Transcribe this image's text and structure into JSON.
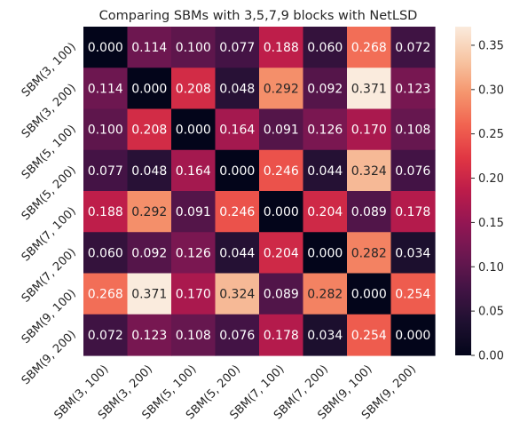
{
  "chart_data": {
    "type": "heatmap",
    "title": "Comparing SBMs with 3,5,7,9 blocks with NetLSD",
    "xlabel": "",
    "ylabel": "",
    "row_labels": [
      "SBM(3, 100)",
      "SBM(3, 200)",
      "SBM(5, 100)",
      "SBM(5, 200)",
      "SBM(7, 100)",
      "SBM(7, 200)",
      "SBM(9, 100)",
      "SBM(9, 200)"
    ],
    "col_labels": [
      "SBM(3, 100)",
      "SBM(3, 200)",
      "SBM(5, 100)",
      "SBM(5, 200)",
      "SBM(7, 100)",
      "SBM(7, 200)",
      "SBM(9, 100)",
      "SBM(9, 200)"
    ],
    "values": [
      [
        0.0,
        0.114,
        0.1,
        0.077,
        0.188,
        0.06,
        0.268,
        0.072
      ],
      [
        0.114,
        0.0,
        0.208,
        0.048,
        0.292,
        0.092,
        0.371,
        0.123
      ],
      [
        0.1,
        0.208,
        0.0,
        0.164,
        0.091,
        0.126,
        0.17,
        0.108
      ],
      [
        0.077,
        0.048,
        0.164,
        0.0,
        0.246,
        0.044,
        0.324,
        0.076
      ],
      [
        0.188,
        0.292,
        0.091,
        0.246,
        0.0,
        0.204,
        0.089,
        0.178
      ],
      [
        0.06,
        0.092,
        0.126,
        0.044,
        0.204,
        0.0,
        0.282,
        0.034
      ],
      [
        0.268,
        0.371,
        0.17,
        0.324,
        0.089,
        0.282,
        0.0,
        0.254
      ],
      [
        0.072,
        0.123,
        0.108,
        0.076,
        0.178,
        0.034,
        0.254,
        0.0
      ]
    ],
    "value_range": [
      0,
      0.371
    ],
    "colormap": "rocket",
    "colorbar_ticks": [
      "0.00",
      "0.05",
      "0.10",
      "0.15",
      "0.20",
      "0.25",
      "0.30",
      "0.35"
    ],
    "colorbar_tick_values": [
      0.0,
      0.05,
      0.1,
      0.15,
      0.2,
      0.25,
      0.3,
      0.35
    ],
    "grid": false
  }
}
